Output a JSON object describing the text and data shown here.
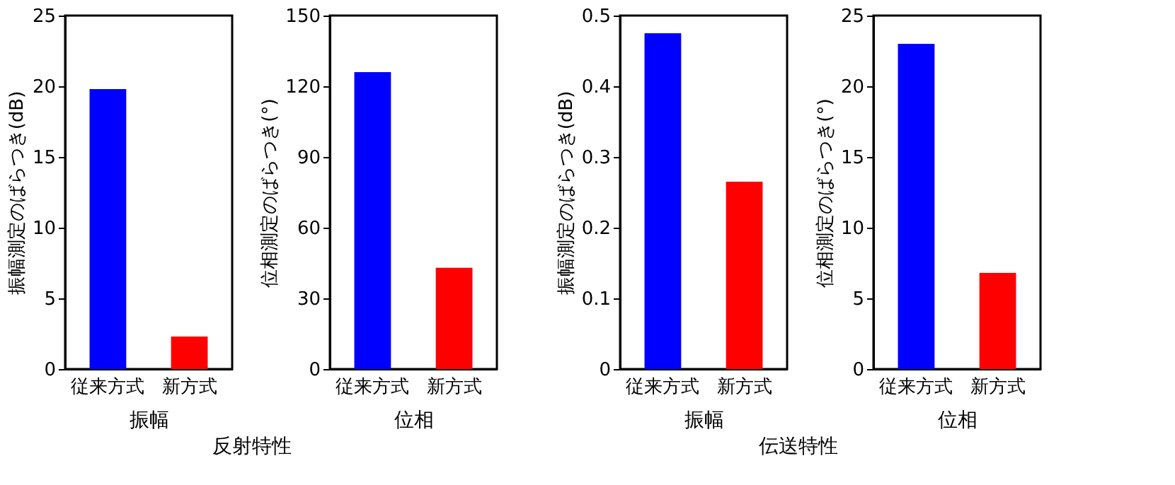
{
  "chart_data": [
    {
      "type": "bar",
      "categories": [
        "従来方式",
        "新方式"
      ],
      "values": [
        19.8,
        2.3
      ],
      "colors": [
        "#0000ff",
        "#ff0000"
      ],
      "xlabel": "振幅",
      "ylabel": "振幅測定のばらつき(dB)",
      "ylim": [
        0,
        25
      ],
      "yticks": [
        0,
        5,
        10,
        15,
        20,
        25
      ],
      "annotations": [
        "反射特性"
      ]
    },
    {
      "type": "bar",
      "categories": [
        "従来方式",
        "新方式"
      ],
      "values": [
        126,
        43
      ],
      "colors": [
        "#0000ff",
        "#ff0000"
      ],
      "xlabel": "位相",
      "ylabel": "位相測定のばらつき(°)",
      "ylim": [
        0,
        150
      ],
      "yticks": [
        0,
        30,
        60,
        90,
        120,
        150
      ]
    },
    {
      "type": "bar",
      "categories": [
        "従来方式",
        "新方式"
      ],
      "values": [
        0.475,
        0.265
      ],
      "colors": [
        "#0000ff",
        "#ff0000"
      ],
      "xlabel": "振幅",
      "ylabel": "振幅測定のばらつき(dB)",
      "ylim": [
        0,
        0.5
      ],
      "yticks": [
        0,
        0.1,
        0.2,
        0.3,
        0.4,
        0.5
      ],
      "annotations": [
        "伝送特性"
      ]
    },
    {
      "type": "bar",
      "categories": [
        "従来方式",
        "新方式"
      ],
      "values": [
        23,
        6.8
      ],
      "colors": [
        "#0000ff",
        "#ff0000"
      ],
      "xlabel": "位相",
      "ylabel": "位相測定のばらつき(°)",
      "ylim": [
        0,
        25
      ],
      "yticks": [
        0,
        5,
        10,
        15,
        20,
        25
      ]
    }
  ]
}
